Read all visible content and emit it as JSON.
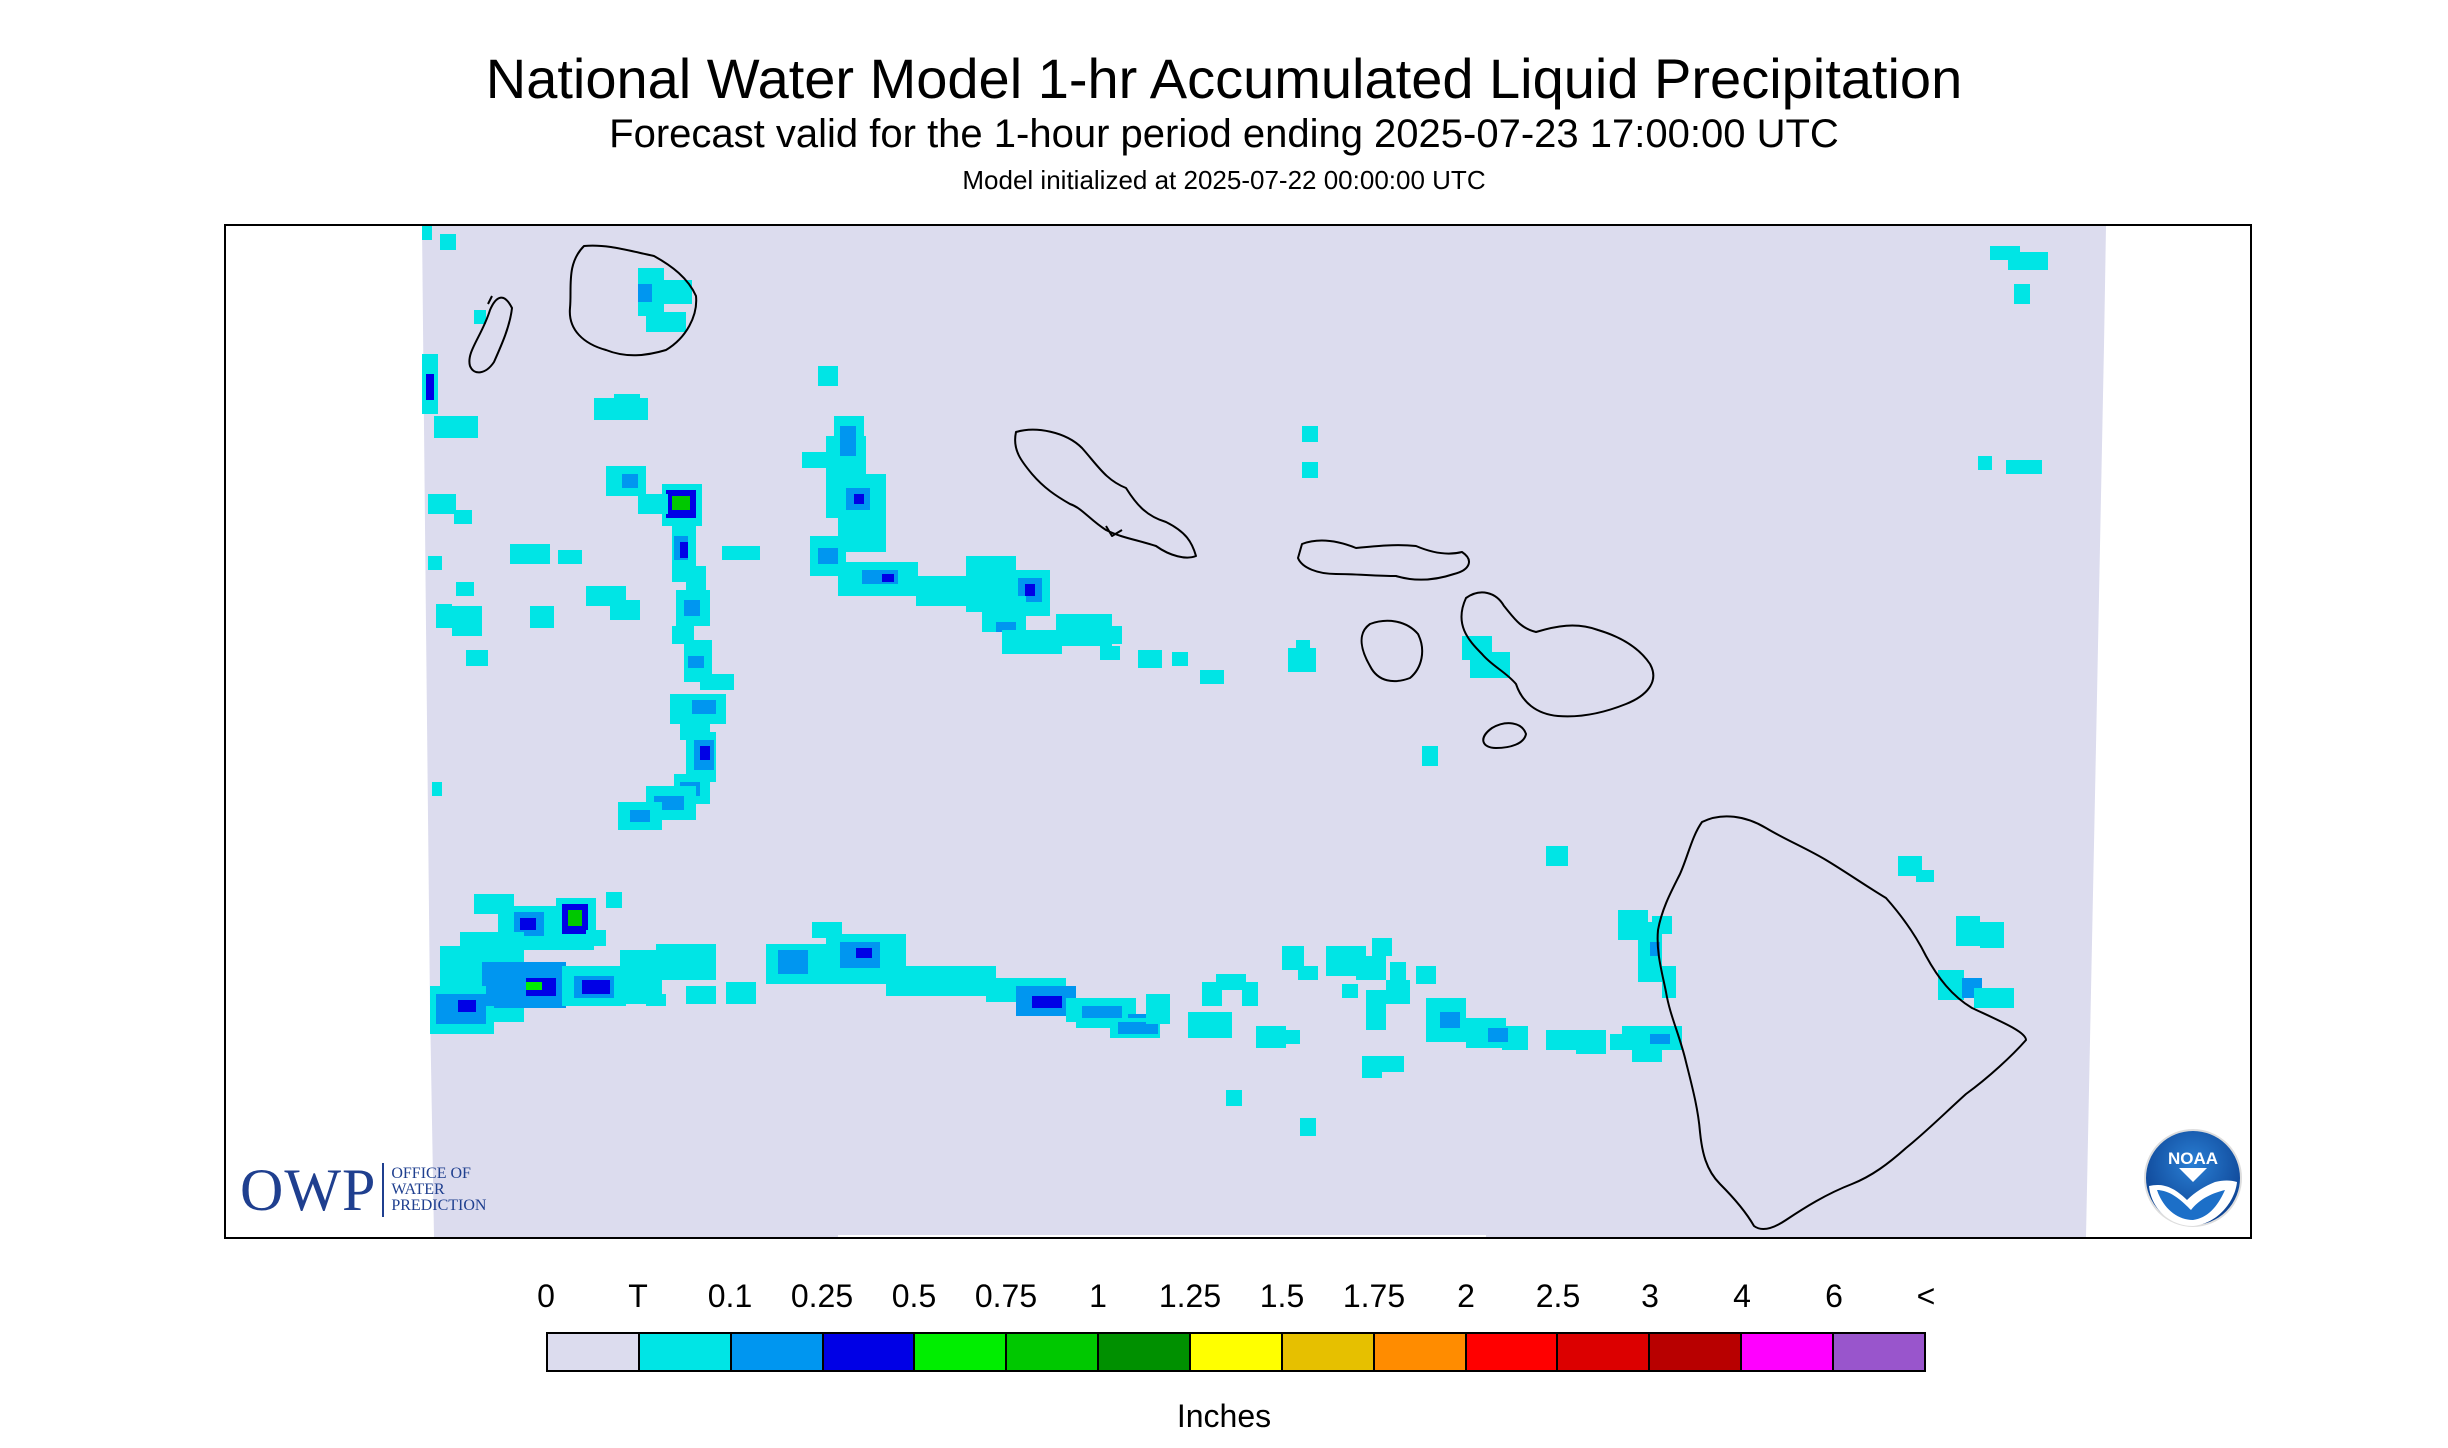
{
  "header": {
    "title": "National Water Model 1-hr Accumulated Liquid Precipitation",
    "subtitle": "Forecast valid for the 1-hour period ending 2025-07-23 17:00:00 UTC",
    "init": "Model initialized at 2025-07-22 00:00:00 UTC"
  },
  "map": {
    "background_color": "#dcdcee",
    "coast_color": "#000000",
    "islands": [
      "Kauai",
      "Niihau",
      "Oahu",
      "Molokai",
      "Lanai",
      "Maui",
      "Kahoolawe",
      "Hawaii"
    ]
  },
  "logos": {
    "owp_main": "OWP",
    "owp_lines": [
      "OFFICE OF",
      "WATER",
      "PREDICTION"
    ],
    "noaa": "NOAA"
  },
  "legend": {
    "units": "Inches",
    "ticks": [
      "0",
      "T",
      "0.1",
      "0.25",
      "0.5",
      "0.75",
      "1",
      "1.25",
      "1.5",
      "1.75",
      "2",
      "2.5",
      "3",
      "4",
      "6",
      "<"
    ],
    "colors": [
      "#dcdcee",
      "#00e5e5",
      "#0096f0",
      "#0000e6",
      "#00ee00",
      "#00c800",
      "#009000",
      "#ffff00",
      "#e6c000",
      "#ff8c00",
      "#ff0000",
      "#dc0000",
      "#b80000",
      "#ff00ff",
      "#9955cc"
    ]
  }
}
